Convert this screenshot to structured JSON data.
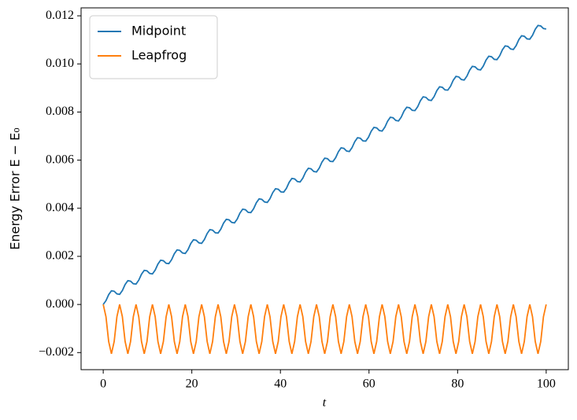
{
  "chart_data": {
    "type": "line",
    "ylabel": "Energy Error E − E₀",
    "xlabel": "t",
    "x": [
      0,
      0.62,
      1.23,
      1.85,
      2.47,
      3.09,
      3.7,
      4.32,
      4.94,
      5.56,
      6.17,
      6.79,
      7.41,
      8.02,
      8.64,
      9.26,
      9.88,
      10.49,
      11.11,
      11.73,
      12.35,
      12.96,
      13.58,
      14.2,
      14.81,
      15.43,
      16.05,
      16.67,
      17.28,
      17.9,
      18.52,
      19.14,
      19.75,
      20.37,
      20.99,
      21.6,
      22.22,
      22.84,
      23.46,
      24.07,
      24.69,
      25.31,
      25.93,
      26.54,
      27.16,
      27.78,
      28.4,
      29.01,
      29.63,
      30.25,
      30.86,
      31.48,
      32.1,
      32.72,
      33.33,
      33.95,
      34.57,
      35.19,
      35.8,
      36.42,
      37.04,
      37.65,
      38.27,
      38.89,
      39.51,
      40.12,
      40.74,
      41.36,
      41.98,
      42.59,
      43.21,
      43.83,
      44.44,
      45.06,
      45.68,
      46.3,
      46.91,
      47.53,
      48.15,
      48.77,
      49.38,
      50.0,
      50.62,
      51.23,
      51.85,
      52.47,
      53.09,
      53.7,
      54.32,
      54.94,
      55.56,
      56.17,
      56.79,
      57.41,
      58.02,
      58.64,
      59.26,
      59.88,
      60.49,
      61.11,
      61.73,
      62.35,
      62.96,
      63.58,
      64.2,
      64.81,
      65.43,
      66.05,
      66.67,
      67.28,
      67.9,
      68.52,
      69.14,
      69.75,
      70.37,
      70.99,
      71.6,
      72.22,
      72.84,
      73.46,
      74.07,
      74.69,
      75.31,
      75.93,
      76.54,
      77.16,
      77.78,
      78.4,
      79.01,
      79.63,
      80.25,
      80.86,
      81.48,
      82.1,
      82.72,
      83.33,
      83.95,
      84.57,
      85.19,
      85.8,
      86.42,
      87.04,
      87.65,
      88.27,
      88.89,
      89.51,
      90.12,
      90.74,
      91.36,
      91.98,
      92.59,
      93.21,
      93.83,
      94.44,
      95.06,
      95.68,
      96.3,
      96.91,
      97.53,
      98.15,
      98.77,
      99.38,
      100
    ],
    "series": [
      {
        "name": "Midpoint",
        "color": "#1f77b4",
        "values": [
          0,
          0.00016,
          0.00041,
          0.00057,
          0.00055,
          0.00044,
          0.00042,
          0.00058,
          0.00083,
          0.00099,
          0.00097,
          0.00086,
          0.00085,
          0.00101,
          0.00126,
          0.00142,
          0.0014,
          0.00129,
          0.00127,
          0.00143,
          0.00168,
          0.00184,
          0.00182,
          0.00171,
          0.0017,
          0.00186,
          0.00211,
          0.00227,
          0.00225,
          0.00214,
          0.00212,
          0.00228,
          0.00253,
          0.00269,
          0.00267,
          0.00256,
          0.00254,
          0.0027,
          0.00295,
          0.00311,
          0.00309,
          0.00298,
          0.00297,
          0.00313,
          0.00338,
          0.00354,
          0.00352,
          0.00341,
          0.00339,
          0.00355,
          0.0038,
          0.00396,
          0.00394,
          0.00383,
          0.00382,
          0.00398,
          0.00423,
          0.00439,
          0.00437,
          0.00426,
          0.00424,
          0.0044,
          0.00465,
          0.00481,
          0.00479,
          0.00468,
          0.00467,
          0.00483,
          0.00508,
          0.00524,
          0.00522,
          0.00511,
          0.00509,
          0.00525,
          0.0055,
          0.00566,
          0.00564,
          0.00553,
          0.00551,
          0.00567,
          0.00592,
          0.00608,
          0.00606,
          0.00595,
          0.00594,
          0.0061,
          0.00635,
          0.00651,
          0.00649,
          0.00638,
          0.00636,
          0.00652,
          0.00677,
          0.00693,
          0.00691,
          0.0068,
          0.00679,
          0.00695,
          0.0072,
          0.00736,
          0.00734,
          0.00723,
          0.00721,
          0.00737,
          0.00762,
          0.00778,
          0.00776,
          0.00765,
          0.00763,
          0.00779,
          0.00804,
          0.0082,
          0.00818,
          0.00807,
          0.00806,
          0.00822,
          0.00847,
          0.00863,
          0.00861,
          0.0085,
          0.00848,
          0.00864,
          0.00889,
          0.00905,
          0.00903,
          0.00892,
          0.00891,
          0.00907,
          0.00932,
          0.00948,
          0.00946,
          0.00935,
          0.00933,
          0.00949,
          0.00974,
          0.0099,
          0.00988,
          0.00977,
          0.00975,
          0.00991,
          0.01016,
          0.01032,
          0.0103,
          0.01019,
          0.01018,
          0.01034,
          0.01059,
          0.01075,
          0.01073,
          0.01062,
          0.0106,
          0.01076,
          0.01101,
          0.01117,
          0.01115,
          0.01104,
          0.01103,
          0.01119,
          0.01144,
          0.0116,
          0.01158,
          0.01147,
          0.01145
        ]
      },
      {
        "name": "Leapfrog",
        "color": "#ff7f0e",
        "values": [
          0,
          -0.00051,
          -0.00154,
          -0.00205,
          -0.00154,
          -0.00051,
          0,
          -0.00051,
          -0.00154,
          -0.00205,
          -0.00154,
          -0.00051,
          0,
          -0.00051,
          -0.00154,
          -0.00205,
          -0.00154,
          -0.00051,
          0,
          -0.00051,
          -0.00154,
          -0.00205,
          -0.00154,
          -0.00051,
          0,
          -0.00051,
          -0.00154,
          -0.00205,
          -0.00154,
          -0.00051,
          0,
          -0.00051,
          -0.00154,
          -0.00205,
          -0.00154,
          -0.00051,
          0,
          -0.00051,
          -0.00154,
          -0.00205,
          -0.00154,
          -0.00051,
          0,
          -0.00051,
          -0.00154,
          -0.00205,
          -0.00154,
          -0.00051,
          0,
          -0.00051,
          -0.00154,
          -0.00205,
          -0.00154,
          -0.00051,
          0,
          -0.00051,
          -0.00154,
          -0.00205,
          -0.00154,
          -0.00051,
          0,
          -0.00051,
          -0.00154,
          -0.00205,
          -0.00154,
          -0.00051,
          0,
          -0.00051,
          -0.00154,
          -0.00205,
          -0.00154,
          -0.00051,
          0,
          -0.00051,
          -0.00154,
          -0.00205,
          -0.00154,
          -0.00051,
          0,
          -0.00051,
          -0.00154,
          -0.00205,
          -0.00154,
          -0.00051,
          0,
          -0.00051,
          -0.00154,
          -0.00205,
          -0.00154,
          -0.00051,
          0,
          -0.00051,
          -0.00154,
          -0.00205,
          -0.00154,
          -0.00051,
          0,
          -0.00051,
          -0.00154,
          -0.00205,
          -0.00154,
          -0.00051,
          0,
          -0.00051,
          -0.00154,
          -0.00205,
          -0.00154,
          -0.00051,
          0,
          -0.00051,
          -0.00154,
          -0.00205,
          -0.00154,
          -0.00051,
          0,
          -0.00051,
          -0.00154,
          -0.00205,
          -0.00154,
          -0.00051,
          0,
          -0.00051,
          -0.00154,
          -0.00205,
          -0.00154,
          -0.00051,
          0,
          -0.00051,
          -0.00154,
          -0.00205,
          -0.00154,
          -0.00051,
          0,
          -0.00051,
          -0.00154,
          -0.00205,
          -0.00154,
          -0.00051,
          0,
          -0.00051,
          -0.00154,
          -0.00205,
          -0.00154,
          -0.00051,
          0,
          -0.00051,
          -0.00154,
          -0.00205,
          -0.00154,
          -0.00051,
          0,
          -0.00051,
          -0.00154,
          -0.00205,
          -0.00154,
          -0.00051,
          0,
          -0.00051,
          -0.00154,
          -0.00205,
          -0.00154,
          -0.00051,
          0
        ]
      }
    ],
    "xlim": [
      -5,
      105
    ],
    "ylim": [
      -0.00271,
      0.01233
    ],
    "xticks": [
      0,
      20,
      40,
      60,
      80,
      100
    ],
    "yticks": [
      {
        "value": -0.002,
        "label": "−0.002"
      },
      {
        "value": 0,
        "label": "0.000"
      },
      {
        "value": 0.002,
        "label": "0.002"
      },
      {
        "value": 0.004,
        "label": "0.004"
      },
      {
        "value": 0.006,
        "label": "0.006"
      },
      {
        "value": 0.008,
        "label": "0.008"
      },
      {
        "value": 0.01,
        "label": "0.010"
      },
      {
        "value": 0.012,
        "label": "0.012"
      }
    ],
    "legend": "upper left"
  }
}
